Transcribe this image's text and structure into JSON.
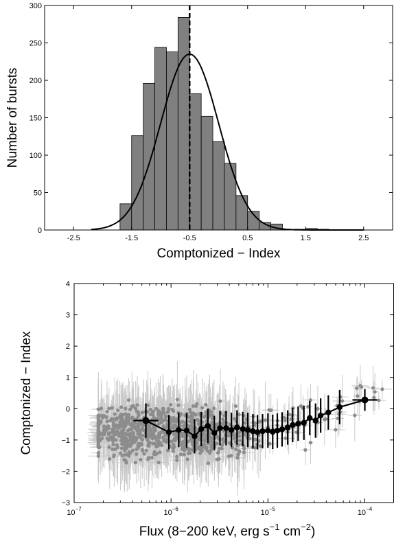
{
  "chart_data": [
    {
      "type": "bar",
      "subtype": "histogram",
      "xlabel": "Comptonized − Index",
      "ylabel": "Number of bursts",
      "xlim": [
        -3.0,
        3.0
      ],
      "ylim": [
        0,
        300
      ],
      "xticks": [
        -2.5,
        -1.5,
        -0.5,
        0.5,
        1.5,
        2.5
      ],
      "xtick_labels": [
        "-2.5",
        "-1.5",
        "-0.5",
        "0.5",
        "1.5",
        "2.5"
      ],
      "yticks": [
        0,
        50,
        100,
        150,
        200,
        250,
        300
      ],
      "ytick_labels": [
        "0",
        "50",
        "100",
        "150",
        "200",
        "250",
        "300"
      ],
      "bin_edges": [
        -1.7,
        -1.5,
        -1.3,
        -1.1,
        -0.9,
        -0.7,
        -0.5,
        -0.3,
        -0.1,
        0.1,
        0.3,
        0.5,
        0.7,
        0.9,
        1.1,
        1.3,
        1.5,
        1.7,
        1.9,
        2.1,
        2.3
      ],
      "counts": [
        35,
        126,
        196,
        244,
        238,
        284,
        182,
        152,
        118,
        89,
        46,
        25,
        10,
        8,
        0,
        1,
        2,
        1,
        0,
        0
      ],
      "bar_color": "#808080",
      "fit": {
        "type": "gaussian",
        "peak": 235,
        "mean": -0.5,
        "sigma": 0.5,
        "range": [
          -2.2,
          2.5
        ],
        "color": "#000000"
      },
      "marker_line": {
        "x": -0.5,
        "style": "dashed",
        "color": "#000000"
      },
      "grid": false
    },
    {
      "type": "scatter",
      "xlabel": "Flux (8−200 keV, erg s",
      "xlabel_sup1": "−1",
      "xlabel_mid": " cm",
      "xlabel_sup2": "−2",
      "xlabel_end": ")",
      "ylabel": "Comptonized − Index",
      "xscale": "log",
      "xlim": [
        1e-07,
        0.0002
      ],
      "ylim": [
        -3,
        4
      ],
      "xticks": [
        1e-07,
        1e-06,
        1e-05,
        0.0001
      ],
      "xtick_bases": [
        "10",
        "10",
        "10",
        "10"
      ],
      "xtick_exps": [
        "−7",
        "−6",
        "−5",
        "−4"
      ],
      "yticks": [
        -3,
        -2,
        -1,
        0,
        1,
        2,
        3,
        4
      ],
      "ytick_labels": [
        "−3",
        "−2",
        "−1",
        "0",
        "1",
        "2",
        "3",
        "4"
      ],
      "point_color": "#8c8c8c",
      "errorbar_color": "#c8c8c8",
      "binned_color": "#000000",
      "binned": [
        {
          "x": 5.5e-07,
          "y": -0.38,
          "yerr": 0.55
        },
        {
          "x": 9.5e-07,
          "y": -0.75,
          "yerr": 0.55
        },
        {
          "x": 1.2e-06,
          "y": -0.68,
          "yerr": 0.55
        },
        {
          "x": 1.45e-06,
          "y": -0.7,
          "yerr": 0.55
        },
        {
          "x": 1.75e-06,
          "y": -0.88,
          "yerr": 0.55
        },
        {
          "x": 2.05e-06,
          "y": -0.65,
          "yerr": 0.55
        },
        {
          "x": 2.4e-06,
          "y": -0.55,
          "yerr": 0.55
        },
        {
          "x": 2.8e-06,
          "y": -0.78,
          "yerr": 0.55
        },
        {
          "x": 3.2e-06,
          "y": -0.62,
          "yerr": 0.55
        },
        {
          "x": 3.7e-06,
          "y": -0.62,
          "yerr": 0.55
        },
        {
          "x": 4.2e-06,
          "y": -0.68,
          "yerr": 0.55
        },
        {
          "x": 4.8e-06,
          "y": -0.6,
          "yerr": 0.55
        },
        {
          "x": 5.5e-06,
          "y": -0.65,
          "yerr": 0.55
        },
        {
          "x": 6.2e-06,
          "y": -0.68,
          "yerr": 0.55
        },
        {
          "x": 7e-06,
          "y": -0.72,
          "yerr": 0.55
        },
        {
          "x": 7.8e-06,
          "y": -0.75,
          "yerr": 0.55
        },
        {
          "x": 8.8e-06,
          "y": -0.72,
          "yerr": 0.55
        },
        {
          "x": 1e-05,
          "y": -0.7,
          "yerr": 0.55
        },
        {
          "x": 1.12e-05,
          "y": -0.74,
          "yerr": 0.55
        },
        {
          "x": 1.25e-05,
          "y": -0.7,
          "yerr": 0.55
        },
        {
          "x": 1.4e-05,
          "y": -0.66,
          "yerr": 0.55
        },
        {
          "x": 1.6e-05,
          "y": -0.6,
          "yerr": 0.55
        },
        {
          "x": 1.8e-05,
          "y": -0.52,
          "yerr": 0.55
        },
        {
          "x": 2.05e-05,
          "y": -0.48,
          "yerr": 0.55
        },
        {
          "x": 2.35e-05,
          "y": -0.45,
          "yerr": 0.55
        },
        {
          "x": 2.7e-05,
          "y": -0.3,
          "yerr": 0.55
        },
        {
          "x": 3.1e-05,
          "y": -0.38,
          "yerr": 0.55
        },
        {
          "x": 3.5e-05,
          "y": -0.22,
          "yerr": 0.55
        },
        {
          "x": 4.2e-05,
          "y": -0.12,
          "yerr": 0.55
        },
        {
          "x": 5.5e-05,
          "y": 0.05,
          "yerr": 0.55
        },
        {
          "x": 0.0001,
          "y": 0.28,
          "yerr": 0.35
        }
      ],
      "grid": false
    }
  ]
}
